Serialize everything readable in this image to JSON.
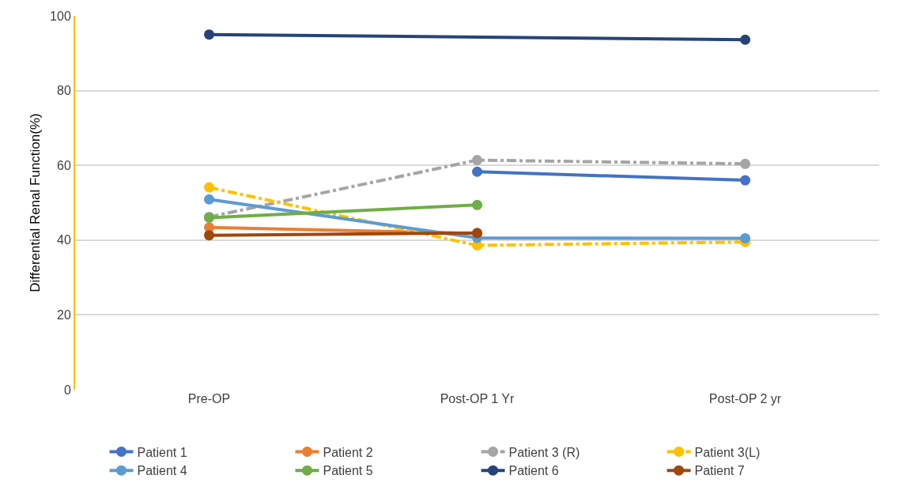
{
  "chart_data": {
    "type": "line",
    "ylabel": "Differential Renal Function(%)",
    "categories": [
      "Pre-OP",
      "Post-OP 1 Yr",
      "Post-OP 2 yr"
    ],
    "ylim": [
      0,
      100
    ],
    "yticks": [
      0,
      20,
      40,
      60,
      80,
      100
    ],
    "grid": "y",
    "legend": "bottom",
    "marker": "circle",
    "series": [
      {
        "name": "Patient 1",
        "color": "#4472c4",
        "values": [
          null,
          58.3,
          56
        ]
      },
      {
        "name": "Patient 2",
        "color": "#ed7d31",
        "values": [
          43.4,
          41.8,
          null
        ]
      },
      {
        "name": "Patient 3 (R)",
        "color": "#a5a5a5",
        "line_style": "dashed",
        "values": [
          46.2,
          61.4,
          60.4
        ]
      },
      {
        "name": "Patient 3(L)",
        "color": "#ffc000",
        "line_style": "dashed",
        "values": [
          54.1,
          38.6,
          39.5
        ]
      },
      {
        "name": "Patient 4",
        "color": "#5b9bd5",
        "values": [
          50.9,
          40.6,
          40.5
        ]
      },
      {
        "name": "Patient 5",
        "color": "#70ad47",
        "values": [
          46,
          49.4,
          null
        ]
      },
      {
        "name": "Patient 6",
        "color": "#264478",
        "values": [
          95,
          null,
          93.6
        ]
      },
      {
        "name": "Patient 7",
        "color": "#9e480e",
        "values": [
          41.3,
          41.9,
          null
        ]
      }
    ]
  }
}
